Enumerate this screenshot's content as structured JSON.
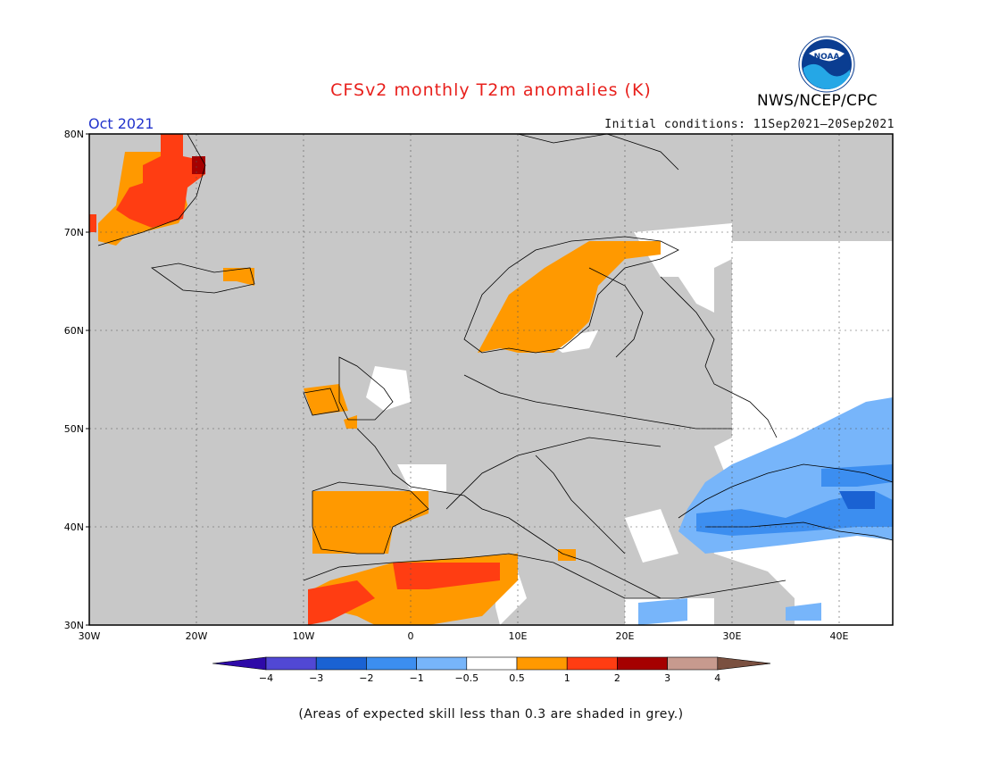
{
  "header": {
    "title": "CFSv2 monthly T2m anomalies (K)",
    "month": "Oct 2021",
    "initial_conditions": "Initial conditions: 11Sep2021–20Sep2021",
    "org": "NWS/NCEP/CPC",
    "logo_text": "NOAA"
  },
  "map": {
    "lon_range": [
      -30,
      45
    ],
    "lat_range": [
      30,
      80
    ],
    "lat_ticks": [
      "30N",
      "40N",
      "50N",
      "60N",
      "70N",
      "80N"
    ],
    "lon_ticks": [
      "30W",
      "20W",
      "10W",
      "0",
      "10E",
      "20E",
      "30E",
      "40E"
    ],
    "colors": {
      "grey": "#c8c8c8",
      "neutral": "#ffffff",
      "warm_05_1": "#ff9900",
      "warm_1_2": "#ff3d12",
      "warm_2_3": "#a50000",
      "cool_m05_m1": "#77b5fa",
      "cool_m1_m2": "#3c8ef0",
      "cool_m2_m3": "#1a62d3"
    }
  },
  "colorbar": {
    "labels": [
      "−4",
      "−3",
      "−2",
      "−1",
      "−0.5",
      "0.5",
      "1",
      "2",
      "3",
      "4"
    ],
    "colors": [
      "#2e0aa8",
      "#5148d4",
      "#1a62d3",
      "#3c8ef0",
      "#77b5fa",
      "#ffffff",
      "#ff9900",
      "#ff3d12",
      "#a50000",
      "#c79a8e",
      "#7a5040"
    ]
  },
  "footnote": "(Areas of expected skill less than 0.3 are shaded in grey.)"
}
